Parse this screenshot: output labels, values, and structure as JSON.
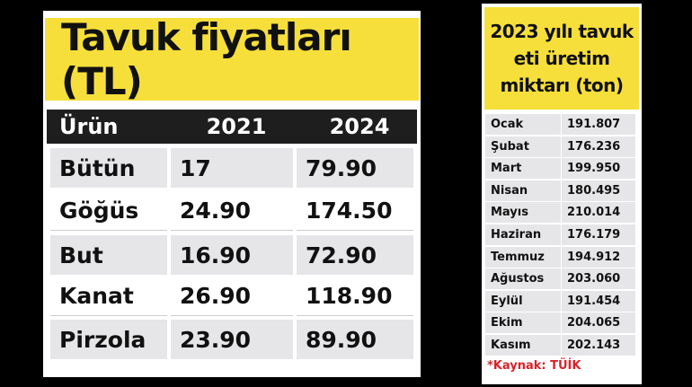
{
  "price_table": {
    "title": "Tavuk fiyatları (TL)",
    "header": [
      "Ürün",
      "2021",
      "2024"
    ],
    "rows": [
      [
        "Bütün",
        "17",
        "79.90"
      ],
      [
        "Göğüs",
        "24.90",
        "174.50"
      ],
      [
        "But",
        "16.90",
        "72.90"
      ],
      [
        "Kanat",
        "26.90",
        "118.90"
      ],
      [
        "Pirzola",
        "23.90",
        "89.90"
      ]
    ]
  },
  "production_table": {
    "title_lines": [
      "2023 yılı tavuk",
      "eti üretim",
      "miktarı (ton)"
    ],
    "rows": [
      [
        "Ocak",
        "191.807"
      ],
      [
        "Şubat",
        "176.236"
      ],
      [
        "Mart",
        "199.950"
      ],
      [
        "Nisan",
        "180.495"
      ],
      [
        "Mayıs",
        "210.014"
      ],
      [
        "Haziran",
        "176.179"
      ],
      [
        "Temmuz",
        "194.912"
      ],
      [
        "Ağustos",
        "203.060"
      ],
      [
        "Eylül",
        "191.454"
      ],
      [
        "Ekim",
        "204.065"
      ],
      [
        "Kasım",
        "202.143"
      ]
    ],
    "source": "*Kaynak: TÜİK"
  }
}
